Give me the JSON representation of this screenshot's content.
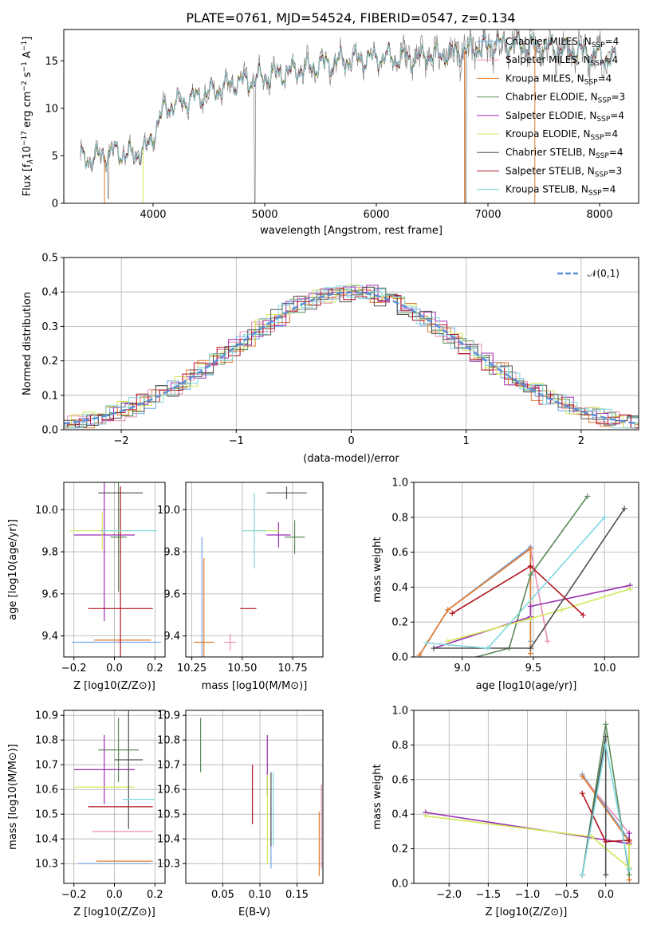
{
  "title": "PLATE=0761, MJD=54524, FIBERID=0547, z=0.134",
  "series_styles": [
    {
      "name": "Chabrier MILES",
      "legend": "Chabrier MILES, N_SSP=4",
      "color": "#6fa6e6"
    },
    {
      "name": "Salpeter MILES",
      "legend": "Salpeter MILES, N_SSP=4",
      "color": "#e98fb4"
    },
    {
      "name": "Kroupa MILES",
      "legend": "Kroupa MILES, N_SSP=4",
      "color": "#e07b2c"
    },
    {
      "name": "Chabrier ELODIE",
      "legend": "Chabrier ELODIE, N_SSP=3",
      "color": "#5a8a5a"
    },
    {
      "name": "Salpeter ELODIE",
      "legend": "Salpeter ELODIE, N_SSP=4",
      "color": "#9a2fb0"
    },
    {
      "name": "Kroupa ELODIE",
      "legend": "Kroupa ELODIE, N_SSP=4",
      "color": "#d2e85a"
    },
    {
      "name": "Chabrier STELIB",
      "legend": "Chabrier STELIB, N_SSP=4",
      "color": "#505050"
    },
    {
      "name": "Salpeter STELIB",
      "legend": "Salpeter STELIB, N_SSP=3",
      "color": "#b0141e"
    },
    {
      "name": "Kroupa STELIB",
      "legend": "Kroupa STELIB, N_SSP=4",
      "color": "#7fd8e0"
    }
  ],
  "chart_data": [
    {
      "type": "line",
      "id": "spectrum",
      "xlabel": "wavelength [Angstrom, rest frame]",
      "ylabel": "Flux [f_λ 10^-17 erg cm^-2 s^-1 A^-1]",
      "xlim": [
        3200,
        8350
      ],
      "ylim": [
        0,
        18.3
      ],
      "xticks": [
        4000,
        5000,
        6000,
        7000,
        8000
      ],
      "yticks": [
        0,
        5,
        10,
        15
      ],
      "grid": false,
      "legend_position": "top-right",
      "data_color": "#808080",
      "continuum": {
        "x": [
          3350,
          3500,
          3650,
          3800,
          3950,
          4100,
          4300,
          4500,
          4700,
          4900,
          5100,
          5300,
          5500,
          5700,
          5900,
          6100,
          6300,
          6500,
          6700,
          6900,
          7100,
          7300,
          7500,
          7700,
          7900,
          8100
        ],
        "y": [
          4.6,
          4.8,
          5.5,
          5.0,
          5.8,
          10.0,
          10.8,
          11.6,
          12.6,
          13.0,
          13.6,
          14.0,
          14.6,
          15.0,
          15.2,
          15.4,
          15.2,
          15.6,
          15.8,
          16.4,
          16.8,
          16.6,
          16.5,
          16.2,
          15.8,
          15.2
        ]
      }
    },
    {
      "type": "line",
      "id": "residuals",
      "xlabel": "(data-model)/error",
      "ylabel": "Normed distribution",
      "xlim": [
        -2.5,
        2.5
      ],
      "ylim": [
        0,
        0.5
      ],
      "xticks": [
        -2,
        -1,
        0,
        1,
        2
      ],
      "yticks": [
        0.0,
        0.1,
        0.2,
        0.3,
        0.4,
        0.5
      ],
      "grid": true,
      "legend": "𝒩(0,1)",
      "legend_position": "top-right",
      "gaussian": {
        "mu": 0,
        "sigma": 1,
        "color": "#5b8fd8"
      }
    },
    {
      "type": "scatter",
      "id": "age_vs_Z",
      "xlabel": "Z [log10(Z/Z⊙)]",
      "ylabel": "age [log10(age/yr)]",
      "xlim": [
        -0.25,
        0.25
      ],
      "ylim": [
        9.3,
        10.13
      ],
      "xticks": [
        -0.2,
        0.0,
        0.2
      ],
      "yticks": [
        9.4,
        9.6,
        9.8,
        10.0
      ],
      "grid": true,
      "points": [
        {
          "series": "Chabrier MILES",
          "x": 0.01,
          "y": 9.37,
          "xerr": 0.22,
          "yerr": 0.0
        },
        {
          "series": "Salpeter MILES",
          "x": 0.02,
          "y": 9.37,
          "xerr": 0.0,
          "yerr": 0.0
        },
        {
          "series": "Kroupa MILES",
          "x": 0.04,
          "y": 9.38,
          "xerr": 0.14,
          "yerr": 0.0
        },
        {
          "series": "Chabrier ELODIE",
          "x": 0.02,
          "y": 9.87,
          "xerr": 0.04,
          "yerr": 0.26
        },
        {
          "series": "Salpeter ELODIE",
          "x": -0.05,
          "y": 9.88,
          "xerr": 0.15,
          "yerr": 0.41
        },
        {
          "series": "Kroupa ELODIE",
          "x": -0.06,
          "y": 9.9,
          "xerr": 0.16,
          "yerr": 0.09
        },
        {
          "series": "Chabrier STELIB",
          "x": 0.03,
          "y": 10.08,
          "xerr": 0.11,
          "yerr": 0.0
        },
        {
          "series": "Salpeter STELIB",
          "x": 0.03,
          "y": 9.53,
          "xerr": 0.16,
          "yerr": 0.58
        },
        {
          "series": "Kroupa STELIB",
          "x": 0.07,
          "y": 9.9,
          "xerr": 0.14,
          "yerr": 0.0
        }
      ]
    },
    {
      "type": "scatter",
      "id": "age_vs_mass",
      "xlabel": "mass [log10(M/M⊙)]",
      "ylabel": "",
      "xlim": [
        10.22,
        10.9
      ],
      "ylim": [
        9.3,
        10.13
      ],
      "xticks": [
        10.25,
        10.5,
        10.75
      ],
      "yticks": [
        9.4,
        9.6,
        9.8,
        10.0
      ],
      "grid": true,
      "points": [
        {
          "series": "Chabrier MILES",
          "x": 10.3,
          "y": 9.37,
          "xerr": 0.0,
          "yerr": 0.5
        },
        {
          "series": "Salpeter MILES",
          "x": 10.44,
          "y": 9.37,
          "xerr": 0.03,
          "yerr": 0.04
        },
        {
          "series": "Kroupa MILES",
          "x": 10.31,
          "y": 9.37,
          "xerr": 0.05,
          "yerr": 0.4
        },
        {
          "series": "Chabrier ELODIE",
          "x": 10.76,
          "y": 9.87,
          "xerr": 0.05,
          "yerr": 0.08
        },
        {
          "series": "Salpeter ELODIE",
          "x": 10.68,
          "y": 9.88,
          "xerr": 0.06,
          "yerr": 0.06
        },
        {
          "series": "Kroupa ELODIE",
          "x": 10.61,
          "y": 9.9,
          "xerr": 0.08,
          "yerr": 0.0
        },
        {
          "series": "Chabrier STELIB",
          "x": 10.72,
          "y": 10.08,
          "xerr": 0.1,
          "yerr": 0.03
        },
        {
          "series": "Salpeter STELIB",
          "x": 10.53,
          "y": 9.53,
          "xerr": 0.04,
          "yerr": 0.0
        },
        {
          "series": "Kroupa STELIB",
          "x": 10.56,
          "y": 9.9,
          "xerr": 0.06,
          "yerr": 0.18
        }
      ]
    },
    {
      "type": "line",
      "id": "weight_vs_age",
      "xlabel": "age [log10(age/yr)]",
      "ylabel": "mass weight",
      "xlim": [
        8.66,
        10.24
      ],
      "ylim": [
        0,
        1
      ],
      "xticks": [
        9.0,
        9.5,
        10.0
      ],
      "yticks": [
        0.0,
        0.2,
        0.4,
        0.6,
        0.8,
        1.0
      ],
      "grid": true,
      "series": [
        {
          "name": "Chabrier MILES",
          "x": [
            8.7,
            8.9,
            9.48,
            9.48
          ],
          "y": [
            0.01,
            0.27,
            0.63,
            0.09
          ]
        },
        {
          "name": "Salpeter MILES",
          "x": [
            8.7,
            8.9,
            9.48,
            9.6
          ],
          "y": [
            0.01,
            0.27,
            0.62,
            0.09
          ]
        },
        {
          "name": "Kroupa MILES",
          "x": [
            8.7,
            8.9,
            9.48,
            9.48
          ],
          "y": [
            0.01,
            0.27,
            0.62,
            0.02
          ]
        },
        {
          "name": "Chabrier ELODIE",
          "x": [
            8.87,
            9.33,
            9.48,
            9.88
          ],
          "y": [
            -0.05,
            0.05,
            0.47,
            0.92
          ]
        },
        {
          "name": "Salpeter ELODIE",
          "x": [
            8.8,
            9.48,
            9.48,
            10.18
          ],
          "y": [
            0.05,
            0.23,
            0.29,
            0.41
          ]
        },
        {
          "name": "Kroupa ELODIE",
          "x": [
            8.9,
            9.48,
            9.7,
            10.18
          ],
          "y": [
            0.09,
            0.22,
            0.27,
            0.39
          ]
        },
        {
          "name": "Chabrier STELIB",
          "x": [
            8.8,
            9.48,
            9.48,
            10.14
          ],
          "y": [
            0.05,
            0.05,
            0.05,
            0.85
          ]
        },
        {
          "name": "Salpeter STELIB",
          "x": [
            8.93,
            9.48,
            9.85
          ],
          "y": [
            0.25,
            0.52,
            0.24
          ]
        },
        {
          "name": "Kroupa STELIB",
          "x": [
            8.75,
            9.18,
            10.0
          ],
          "y": [
            0.08,
            0.05,
            0.8
          ]
        }
      ]
    },
    {
      "type": "scatter",
      "id": "mass_vs_Z",
      "xlabel": "Z [log10(Z/Z⊙)]",
      "ylabel": "mass [log10(M/M⊙)]",
      "xlim": [
        -0.25,
        0.25
      ],
      "ylim": [
        10.22,
        10.92
      ],
      "xticks": [
        -0.2,
        0.0,
        0.2
      ],
      "yticks": [
        10.3,
        10.4,
        10.5,
        10.6,
        10.7,
        10.8,
        10.9
      ],
      "grid": true,
      "points": [
        {
          "series": "Chabrier MILES",
          "x": 0.0,
          "y": 10.3,
          "xerr": 0.18,
          "yerr": 0.0
        },
        {
          "series": "Salpeter MILES",
          "x": 0.04,
          "y": 10.43,
          "xerr": 0.15,
          "yerr": 0.0
        },
        {
          "series": "Kroupa MILES",
          "x": 0.05,
          "y": 10.31,
          "xerr": 0.14,
          "yerr": 0.0
        },
        {
          "series": "Chabrier ELODIE",
          "x": 0.02,
          "y": 10.76,
          "xerr": 0.1,
          "yerr": 0.13
        },
        {
          "series": "Salpeter ELODIE",
          "x": -0.05,
          "y": 10.68,
          "xerr": 0.15,
          "yerr": 0.14
        },
        {
          "series": "Kroupa ELODIE",
          "x": -0.05,
          "y": 10.61,
          "xerr": 0.15,
          "yerr": 0.0
        },
        {
          "series": "Chabrier STELIB",
          "x": 0.07,
          "y": 10.72,
          "xerr": 0.07,
          "yerr": 0.28
        },
        {
          "series": "Salpeter STELIB",
          "x": 0.03,
          "y": 10.53,
          "xerr": 0.16,
          "yerr": 0.0
        },
        {
          "series": "Kroupa STELIB",
          "x": 0.12,
          "y": 10.56,
          "xerr": 0.08,
          "yerr": 0.0
        }
      ]
    },
    {
      "type": "scatter",
      "id": "mass_vs_EBV",
      "xlabel": "E(B-V)",
      "ylabel": "",
      "xlim": [
        0.0,
        0.185
      ],
      "ylim": [
        10.22,
        10.92
      ],
      "xticks": [
        0.05,
        0.1,
        0.15
      ],
      "yticks": [
        10.3,
        10.4,
        10.5,
        10.6,
        10.7,
        10.8,
        10.9
      ],
      "grid": true,
      "points": [
        {
          "series": "Chabrier MILES",
          "x": 0.115,
          "y": 10.43,
          "yerr": 0.15
        },
        {
          "series": "Salpeter MILES",
          "x": 0.183,
          "y": 10.45,
          "yerr": 0.17
        },
        {
          "series": "Kroupa MILES",
          "x": 0.18,
          "y": 10.38,
          "yerr": 0.13
        },
        {
          "series": "Chabrier ELODIE",
          "x": 0.02,
          "y": 10.78,
          "yerr": 0.11
        },
        {
          "series": "Salpeter ELODIE",
          "x": 0.11,
          "y": 10.7,
          "yerr": 0.12
        },
        {
          "series": "Kroupa ELODIE",
          "x": 0.11,
          "y": 10.48,
          "yerr": 0.18
        },
        {
          "series": "Chabrier STELIB",
          "x": 0.115,
          "y": 10.52,
          "yerr": 0.15
        },
        {
          "series": "Salpeter STELIB",
          "x": 0.09,
          "y": 10.58,
          "yerr": 0.12
        },
        {
          "series": "Kroupa STELIB",
          "x": 0.118,
          "y": 10.52,
          "yerr": 0.15
        }
      ]
    },
    {
      "type": "line",
      "id": "weight_vs_Z",
      "xlabel": "Z [log10(Z/Z⊙)]",
      "ylabel": "mass weight",
      "xlim": [
        -2.45,
        0.42
      ],
      "ylim": [
        0,
        1
      ],
      "xticks": [
        -2.0,
        -1.5,
        -1.0,
        -0.5,
        0.0
      ],
      "yticks": [
        0.0,
        0.2,
        0.4,
        0.6,
        0.8,
        1.0
      ],
      "grid": true,
      "series": [
        {
          "name": "Chabrier MILES",
          "x": [
            -0.3,
            0.3,
            0.3,
            0.3
          ],
          "y": [
            0.63,
            0.25,
            0.09,
            0.02
          ]
        },
        {
          "name": "Salpeter MILES",
          "x": [
            -0.3,
            0.3,
            0.3
          ],
          "y": [
            0.62,
            0.29,
            0.09
          ]
        },
        {
          "name": "Kroupa MILES",
          "x": [
            -0.3,
            0.3,
            0.3
          ],
          "y": [
            0.62,
            0.24,
            0.02
          ]
        },
        {
          "name": "Chabrier ELODIE",
          "x": [
            -0.3,
            0.0,
            0.3
          ],
          "y": [
            0.05,
            0.92,
            0.05
          ]
        },
        {
          "name": "Salpeter ELODIE",
          "x": [
            -2.3,
            0.3,
            0.3
          ],
          "y": [
            0.41,
            0.23,
            0.29
          ]
        },
        {
          "name": "Kroupa ELODIE",
          "x": [
            -2.3,
            -0.18,
            0.3,
            0.3
          ],
          "y": [
            0.39,
            0.27,
            0.09,
            0.22
          ]
        },
        {
          "name": "Chabrier STELIB",
          "x": [
            -0.3,
            0.0,
            0.0
          ],
          "y": [
            0.05,
            0.85,
            0.05
          ]
        },
        {
          "name": "Salpeter STELIB",
          "x": [
            -0.3,
            0.0,
            0.3
          ],
          "y": [
            0.52,
            0.24,
            0.25
          ]
        },
        {
          "name": "Kroupa STELIB",
          "x": [
            -0.3,
            0.0,
            0.3
          ],
          "y": [
            0.05,
            0.8,
            0.08
          ]
        }
      ]
    }
  ]
}
